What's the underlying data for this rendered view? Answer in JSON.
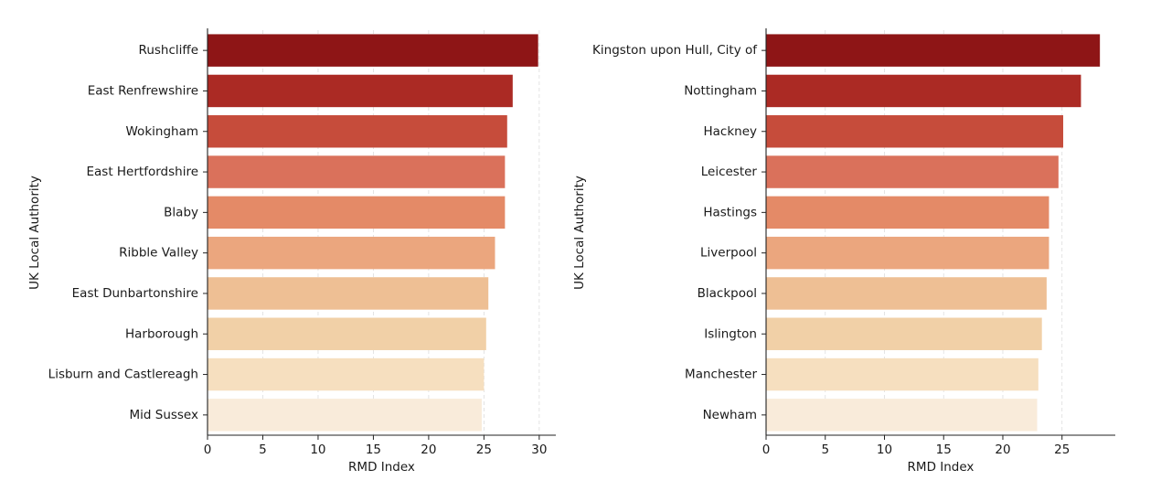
{
  "chart_data": [
    {
      "type": "bar",
      "orientation": "horizontal",
      "categories": [
        "Rushcliffe",
        "East Renfrewshire",
        "Wokingham",
        "East Hertfordshire",
        "Blaby",
        "Ribble Valley",
        "East Dunbartonshire",
        "Harborough",
        "Lisburn and Castlereagh",
        "Mid Sussex"
      ],
      "values": [
        29.9,
        27.6,
        27.1,
        26.9,
        26.9,
        26.0,
        25.4,
        25.2,
        25.0,
        24.8
      ],
      "xlabel": "RMD Index",
      "ylabel": "UK Local Authority",
      "xlim": [
        0,
        31.5
      ],
      "xticks": [
        0,
        5,
        10,
        15,
        20,
        25,
        30
      ],
      "grid": "vertical-dashed",
      "colors": [
        "#8e1516",
        "#ab2a24",
        "#c64c3b",
        "#da715b",
        "#e48a67",
        "#eba67e",
        "#eebf94",
        "#f1d0a7",
        "#f6dfbf",
        "#f9ebda"
      ]
    },
    {
      "type": "bar",
      "orientation": "horizontal",
      "categories": [
        "Kingston upon Hull, City of",
        "Nottingham",
        "Hackney",
        "Leicester",
        "Hastings",
        "Liverpool",
        "Blackpool",
        "Islington",
        "Manchester",
        "Newham"
      ],
      "values": [
        28.2,
        26.6,
        25.1,
        24.7,
        23.9,
        23.9,
        23.7,
        23.3,
        23.0,
        22.9
      ],
      "xlabel": "RMD Index",
      "ylabel": "UK Local Authority",
      "xlim": [
        0,
        29.5
      ],
      "xticks": [
        0,
        5,
        10,
        15,
        20,
        25
      ],
      "grid": "vertical-dashed",
      "colors": [
        "#8e1516",
        "#ab2a24",
        "#c64c3b",
        "#da715b",
        "#e48a67",
        "#eba67e",
        "#eebf94",
        "#f1d0a7",
        "#f6dfbf",
        "#f9ebda"
      ]
    }
  ]
}
